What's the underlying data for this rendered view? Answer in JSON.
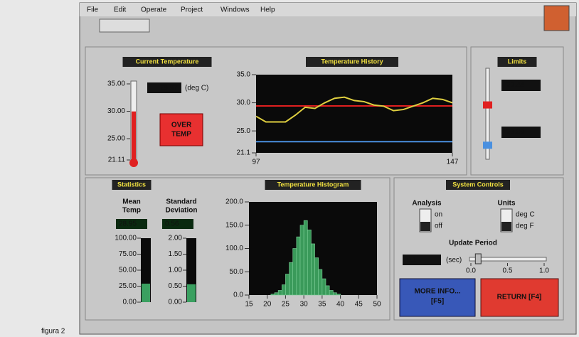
{
  "menu": [
    "File",
    "Edit",
    "Operate",
    "Project",
    "Windows",
    "Help"
  ],
  "current_temperature": {
    "title": "Current Temperature",
    "value": 29.97,
    "unit": "(deg C)",
    "scale": [
      21.11,
      35
    ],
    "ticks": [
      {
        "value": 35,
        "label": "35.00"
      },
      {
        "value": 30,
        "label": "30.00"
      },
      {
        "value": 25,
        "label": "25.00"
      },
      21.11
    ],
    "alarm": [
      "OVER",
      "TEMP"
    ]
  },
  "history": {
    "type": "line",
    "title": "Temperature History",
    "x": [
      97,
      99.5,
      102,
      104.5,
      107,
      109.5,
      112,
      114.5,
      117,
      119.5,
      122,
      124.5,
      127,
      129.5,
      132,
      134.5,
      137,
      139.5,
      142,
      144.5,
      147
    ],
    "values": [
      27.6,
      26.6,
      26.6,
      26.6,
      27.8,
      29.2,
      29.0,
      30.0,
      30.8,
      31.0,
      30.4,
      30.2,
      29.6,
      29.4,
      28.6,
      28.8,
      29.4,
      30.0,
      30.8,
      30.6,
      30.0
    ],
    "color": "#e0d040",
    "xlim": [
      97,
      147
    ],
    "xticks": [
      97,
      147
    ],
    "ylim": [
      21.1,
      35
    ],
    "yticks": [
      {
        "value": 35,
        "label": "35.0"
      },
      {
        "value": 30,
        "label": "30.0"
      },
      {
        "value": 25,
        "label": "25.0"
      },
      21.1
    ]
  },
  "limits": {
    "title": "Limits",
    "upper": 29.44,
    "lower": 23.09,
    "upper_color": "#e02020",
    "lower_color": "#4a90e0"
  },
  "statistics": {
    "title": "Statistics",
    "mean_label": [
      "Mean",
      "Temp"
    ],
    "std_label": [
      "Standard",
      "Deviation"
    ],
    "mean": 28.95,
    "std": 0.56,
    "mean_scale": [
      0,
      100
    ],
    "mean_ticks": [
      {
        "value": 100,
        "label": "100.00"
      },
      {
        "value": 75,
        "label": "75.00"
      },
      {
        "value": 50,
        "label": "50.00"
      },
      {
        "value": 25,
        "label": "25.00"
      },
      {
        "value": 0,
        "label": "0.00"
      }
    ],
    "std_scale": [
      0,
      2
    ],
    "std_ticks": [
      {
        "value": 2,
        "label": "2.00"
      },
      {
        "value": 1.5,
        "label": "1.50"
      },
      {
        "value": 1,
        "label": "1.00"
      },
      {
        "value": 0.5,
        "label": "0.50"
      },
      {
        "value": 0,
        "label": "0.00"
      }
    ]
  },
  "histogram": {
    "type": "histogram",
    "title": "Temperature Histogram",
    "bins": [
      20,
      21,
      22,
      23,
      24,
      25,
      26,
      27,
      28,
      29,
      30,
      31,
      32,
      33,
      34,
      35,
      36,
      37,
      38,
      39,
      40
    ],
    "values": [
      0,
      2,
      5,
      10,
      22,
      45,
      70,
      100,
      125,
      150,
      160,
      140,
      110,
      80,
      55,
      35,
      20,
      10,
      5,
      2
    ],
    "color": "#3a9a5a",
    "xlim": [
      15,
      50
    ],
    "xticks": [
      15,
      20,
      25,
      30,
      35,
      40,
      45,
      50
    ],
    "ylim": [
      0,
      200
    ],
    "yticks": [
      {
        "value": 200,
        "label": "200.0"
      },
      {
        "value": 150,
        "label": "150.0"
      },
      {
        "value": 100,
        "label": "100.0"
      },
      {
        "value": 50,
        "label": "50.0"
      },
      {
        "value": 0,
        "label": "0.0"
      }
    ]
  },
  "system_controls": {
    "title": "System Controls",
    "analysis": {
      "label": "Analysis",
      "on": "on",
      "off": "off"
    },
    "units": {
      "label": "Units",
      "c": "deg C",
      "f": "deg F"
    },
    "update_period": {
      "label": "Update Period",
      "value": 0.1,
      "unit": "(sec)",
      "scale": [
        0,
        1
      ],
      "ticks": [
        {
          "value": 0,
          "label": "0.0"
        },
        {
          "value": 0.5,
          "label": "0.5"
        },
        {
          "value": 1,
          "label": "1.0"
        }
      ]
    },
    "more_info": [
      "MORE INFO...",
      "[F5]"
    ],
    "return": "RETURN [F4]"
  },
  "caption": "figura 2"
}
